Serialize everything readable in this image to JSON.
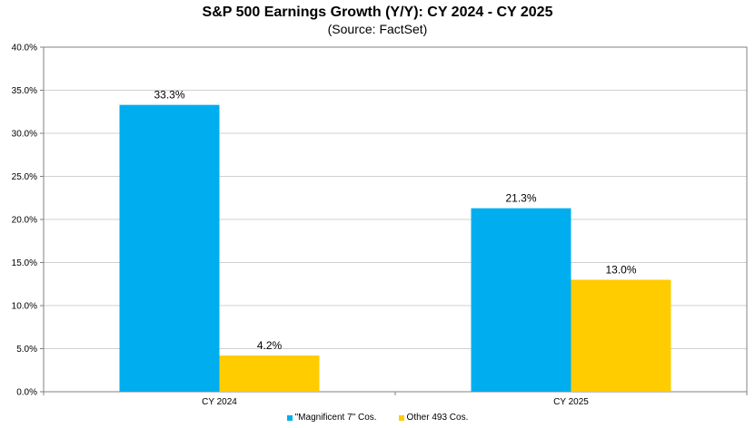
{
  "chart_data": {
    "type": "bar",
    "title": "S&P 500 Earnings Growth (Y/Y): CY 2024 - CY 2025",
    "subtitle": "(Source: FactSet)",
    "categories": [
      "CY 2024",
      "CY 2025"
    ],
    "series": [
      {
        "name": "\"Magnificent 7\" Cos.",
        "values": [
          33.3,
          21.3
        ],
        "labels": [
          "33.3%",
          "21.3%"
        ],
        "color": "#00AEEF"
      },
      {
        "name": "Other 493 Cos.",
        "values": [
          4.2,
          13.0
        ],
        "labels": [
          "4.2%",
          "13.0%"
        ],
        "color": "#FFCC00"
      }
    ],
    "ylim": [
      0,
      40
    ],
    "yticks": [
      "0.0%",
      "5.0%",
      "10.0%",
      "15.0%",
      "20.0%",
      "25.0%",
      "30.0%",
      "35.0%",
      "40.0%"
    ],
    "grid": true,
    "legend": "bottom-center"
  }
}
